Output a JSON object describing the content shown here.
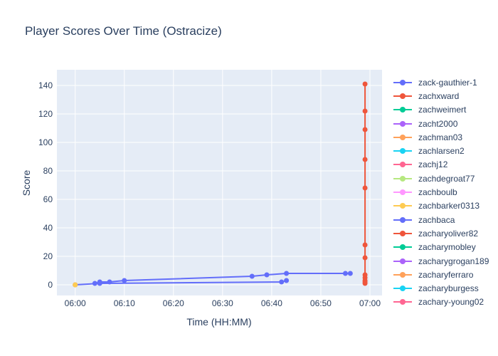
{
  "title": "Player Scores Over Time (Ostracize)",
  "axes": {
    "x_label": "Time (HH:MM)",
    "y_label": "Score",
    "x_tick_labels": [
      "06:00",
      "06:10",
      "06:20",
      "06:30",
      "06:40",
      "06:50",
      "07:00"
    ],
    "y_tick_labels": [
      0,
      20,
      40,
      60,
      80,
      100,
      120,
      140
    ]
  },
  "colors": {
    "text": "#2a3f5f",
    "plot_background": "#e5ecf6",
    "gridline": "#ffffff",
    "paper_background": "#ffffff"
  },
  "chart_data": {
    "type": "line",
    "title": "Player Scores Over Time (Ostracize)",
    "xlabel": "Time (HH:MM)",
    "ylabel": "Score",
    "x_unit": "minutes after 06:00",
    "x_tick_minutes": [
      0,
      10,
      20,
      30,
      40,
      50,
      60
    ],
    "xlim_minutes": [
      -3.7,
      62.5
    ],
    "ylim": [
      -7.5,
      151
    ],
    "grid": true,
    "legend_position": "right",
    "series": [
      {
        "name": "zack-gauthier-1",
        "color": "#636efa",
        "x": [
          0,
          5,
          42,
          43
        ],
        "y": [
          0,
          1,
          2,
          3
        ]
      },
      {
        "name": "zachxward",
        "color": "#ef553b",
        "x": [
          59,
          59,
          59,
          59,
          59,
          59,
          59,
          59,
          59,
          59,
          59,
          59
        ],
        "y": [
          1,
          2,
          3,
          5,
          7,
          19,
          28,
          68,
          88,
          109,
          122,
          141
        ]
      },
      {
        "name": "zachweimert",
        "color": "#00cc96",
        "x": [],
        "y": []
      },
      {
        "name": "zacht2000",
        "color": "#ab63fa",
        "x": [],
        "y": []
      },
      {
        "name": "zachman03",
        "color": "#ffa15a",
        "x": [
          0
        ],
        "y": [
          0
        ]
      },
      {
        "name": "zachlarsen2",
        "color": "#19d3f3",
        "x": [],
        "y": []
      },
      {
        "name": "zachj12",
        "color": "#ff6692",
        "x": [],
        "y": []
      },
      {
        "name": "zachdegroat77",
        "color": "#b6e880",
        "x": [],
        "y": []
      },
      {
        "name": "zachboulb",
        "color": "#ff97ff",
        "x": [],
        "y": []
      },
      {
        "name": "zachbarker0313",
        "color": "#fecb52",
        "x": [
          0
        ],
        "y": [
          0
        ]
      },
      {
        "name": "zachbaca",
        "color": "#636efa",
        "x": [
          4,
          5,
          7,
          10,
          36,
          39,
          43,
          55,
          56
        ],
        "y": [
          1,
          2,
          2,
          3,
          6,
          7,
          8,
          8,
          8
        ]
      },
      {
        "name": "zacharyoliver82",
        "color": "#ef553b",
        "x": [],
        "y": []
      },
      {
        "name": "zacharymobley",
        "color": "#00cc96",
        "x": [],
        "y": []
      },
      {
        "name": "zacharygrogan189",
        "color": "#ab63fa",
        "x": [],
        "y": []
      },
      {
        "name": "zacharyferraro",
        "color": "#ffa15a",
        "x": [],
        "y": []
      },
      {
        "name": "zacharyburgess",
        "color": "#19d3f3",
        "x": [],
        "y": []
      },
      {
        "name": "zachary-young02",
        "color": "#ff6692",
        "x": [],
        "y": []
      }
    ]
  }
}
